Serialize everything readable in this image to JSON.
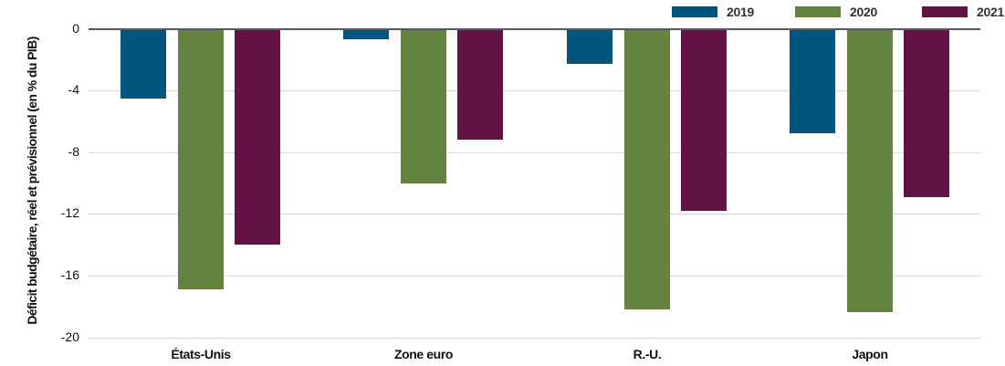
{
  "chart_data": {
    "type": "bar",
    "title": "",
    "xlabel": "",
    "ylabel": "Déficit budgétaire, réel et prévisionnel (en % du PIB)",
    "categories": [
      "États-Unis",
      "Zone euro",
      "R.-U.",
      "Japon"
    ],
    "series": [
      {
        "name": "2019",
        "color": "#02557c",
        "values": [
          -4.5,
          -0.7,
          -2.3,
          -6.8
        ]
      },
      {
        "name": "2020",
        "color": "#648340",
        "values": [
          -16.9,
          -10.0,
          -18.2,
          -18.4
        ]
      },
      {
        "name": "2021",
        "color": "#621445",
        "values": [
          -14.0,
          -7.2,
          -11.8,
          -10.9
        ]
      }
    ],
    "ylim": [
      -20,
      0
    ],
    "yticks": [
      0,
      -4,
      -8,
      -12,
      -16,
      -20
    ],
    "ytick_labels": [
      "0",
      "-4",
      "-8",
      "-12",
      "-16",
      "-20"
    ],
    "grid": true,
    "legend_position": "top-right"
  }
}
